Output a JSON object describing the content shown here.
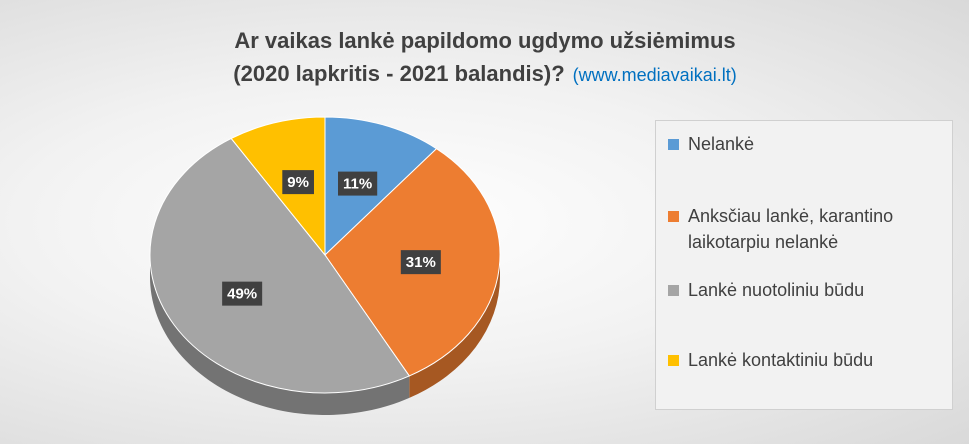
{
  "chart_data": {
    "type": "pie",
    "title": [
      "Ar vaikas lankė papildomo ugdymo užsiėmimus",
      "(2020 lapkritis - 2021 balandis)?"
    ],
    "subtitle": "(www.mediavaikai.lt)",
    "categories": [
      "Nelankė",
      "Anksčiau lankė, karantino laikotarpiu nelankė",
      "Lankė nuotoliniu būdu",
      "Lankė kontaktiniu būdu"
    ],
    "values": [
      11,
      31,
      49,
      9
    ],
    "value_labels": [
      "11%",
      "31%",
      "49%",
      "9%"
    ],
    "colors": [
      "#5b9bd5",
      "#ed7d31",
      "#a5a5a5",
      "#ffc000"
    ],
    "legend": "right"
  }
}
